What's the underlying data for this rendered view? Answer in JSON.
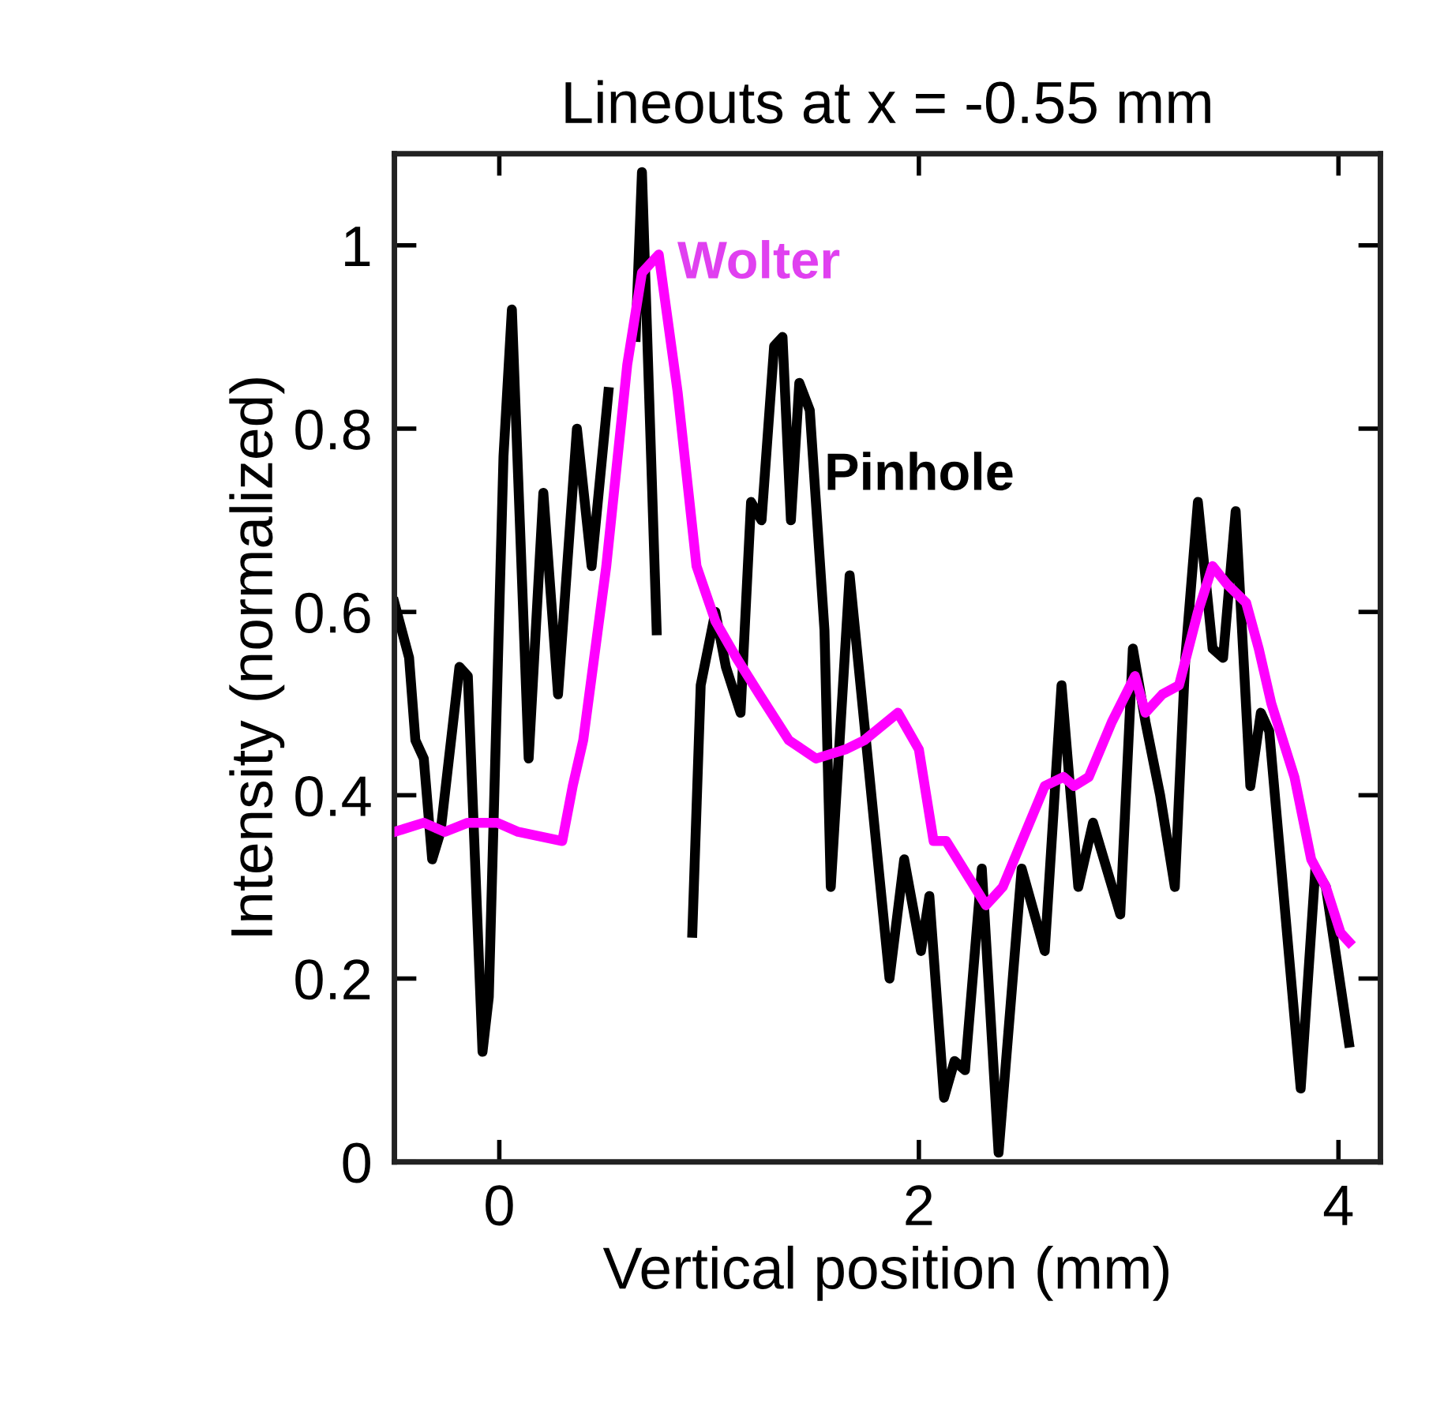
{
  "chart_data": {
    "type": "line",
    "title": "Lineouts at x = -0.55 mm",
    "xlabel": "Vertical position (mm)",
    "ylabel": "Intensity (normalized)",
    "xlim": [
      -0.5,
      4.2
    ],
    "ylim": [
      0,
      1.1
    ],
    "xticks": [
      0,
      2,
      4
    ],
    "yticks": [
      0,
      0.2,
      0.4,
      0.6,
      0.8,
      1
    ],
    "grid": false,
    "legend": false,
    "marker": "none",
    "line_style": "solid",
    "series": [
      {
        "color": "#000000",
        "x": [
          -0.5,
          -0.43,
          -0.4,
          -0.36,
          -0.32,
          -0.28,
          -0.22,
          -0.19,
          -0.15,
          -0.08,
          -0.05,
          0.02,
          0.06,
          0.14,
          0.21,
          0.28,
          0.37,
          0.44,
          0.52,
          0.58,
          0.62,
          0.65,
          0.68,
          0.75,
          0.81,
          0.89,
          0.92,
          0.96,
          1.03,
          1.08,
          1.15,
          1.2,
          1.25,
          1.31,
          1.35,
          1.39,
          1.43,
          1.48,
          1.55,
          1.58,
          1.67,
          1.86,
          1.93,
          2.01,
          2.05,
          2.12,
          2.17,
          2.22,
          2.3,
          2.38,
          2.49,
          2.6,
          2.68,
          2.76,
          2.83,
          2.96,
          3.02,
          3.08,
          3.15,
          3.22,
          3.27,
          3.33,
          3.4,
          3.45,
          3.51,
          3.58,
          3.63,
          3.67,
          3.82,
          3.89,
          3.94,
          4.05
        ],
        "values": [
          0.61,
          0.55,
          0.46,
          0.44,
          0.33,
          0.36,
          0.48,
          0.54,
          0.53,
          0.12,
          0.18,
          0.77,
          0.93,
          0.44,
          0.73,
          0.51,
          0.8,
          0.65,
          0.84,
          null,
          null,
          0.9,
          1.08,
          0.58,
          null,
          null,
          0.25,
          0.52,
          0.6,
          0.54,
          0.49,
          0.72,
          0.7,
          0.89,
          0.9,
          0.7,
          0.85,
          0.82,
          0.58,
          0.3,
          0.64,
          0.2,
          0.33,
          0.23,
          0.29,
          0.07,
          0.11,
          0.1,
          0.32,
          0.01,
          0.32,
          0.23,
          0.52,
          0.3,
          0.37,
          0.27,
          0.56,
          0.48,
          0.4,
          0.3,
          0.55,
          0.72,
          0.56,
          0.55,
          0.71,
          0.41,
          0.49,
          0.47,
          0.08,
          0.32,
          0.3,
          0.13
        ]
      },
      {
        "color": "#ff00ff",
        "x": [
          -0.5,
          -0.36,
          -0.26,
          -0.15,
          -0.01,
          0.09,
          0.3,
          0.35,
          0.4,
          0.51,
          0.61,
          0.68,
          0.76,
          0.85,
          0.94,
          1.03,
          1.13,
          1.24,
          1.38,
          1.51,
          1.65,
          1.74,
          1.9,
          2.0,
          2.07,
          2.13,
          2.32,
          2.4,
          2.6,
          2.69,
          2.74,
          2.81,
          2.92,
          3.03,
          3.08,
          3.16,
          3.24,
          3.33,
          3.4,
          3.47,
          3.56,
          3.62,
          3.68,
          3.79,
          3.87,
          3.94,
          4.01,
          4.05
        ],
        "values": [
          0.36,
          0.37,
          0.36,
          0.37,
          0.37,
          0.36,
          0.35,
          0.41,
          0.46,
          0.65,
          0.87,
          0.97,
          0.99,
          0.84,
          0.65,
          0.59,
          0.55,
          0.51,
          0.46,
          0.44,
          0.45,
          0.46,
          0.49,
          0.45,
          0.35,
          0.35,
          0.28,
          0.3,
          0.41,
          0.42,
          0.41,
          0.42,
          0.48,
          0.53,
          0.49,
          0.51,
          0.52,
          0.6,
          0.65,
          0.63,
          0.61,
          0.56,
          0.5,
          0.42,
          0.33,
          0.3,
          0.25,
          0.24
        ]
      }
    ],
    "annotations": [
      "Pinhole",
      "Wolter"
    ]
  }
}
